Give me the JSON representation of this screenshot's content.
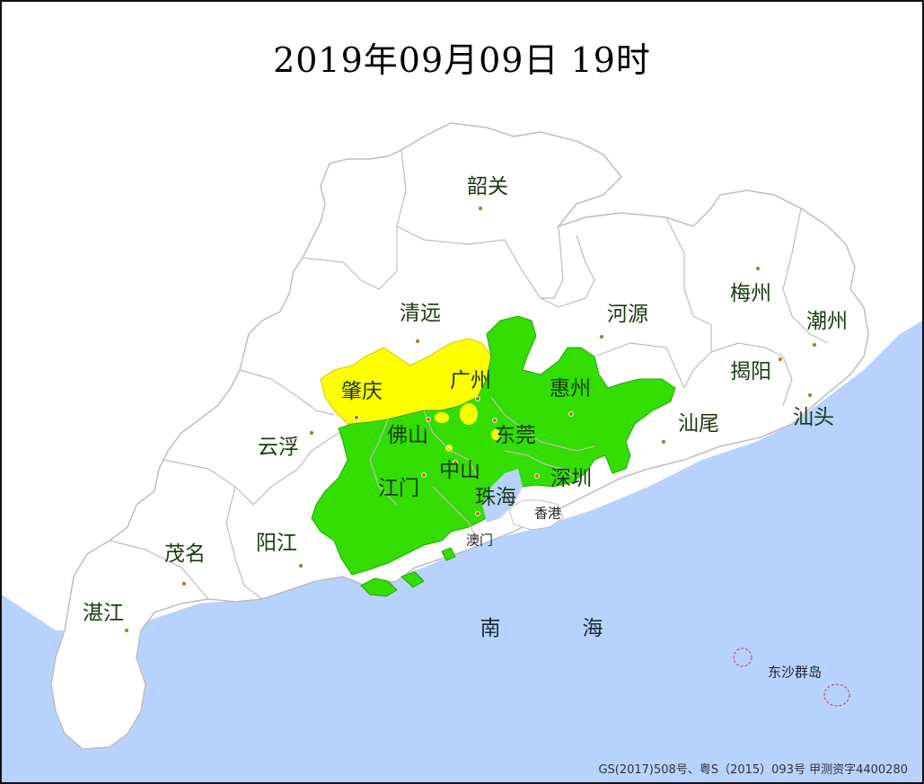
{
  "title": "2019年09月09日  19时",
  "colors": {
    "sea": "#b7d2ff",
    "land": "#ffffff",
    "border": "#bdbdbd",
    "green_zone": "#33dd00",
    "yellow_zone": "#ffff00",
    "city_marker": "#b07a28"
  },
  "cities": {
    "shaoguan": "韶关",
    "qingyuan": "清远",
    "heyuan": "河源",
    "meizhou": "梅州",
    "chaozhou": "潮州",
    "jieyang": "揭阳",
    "shantou": "汕头",
    "shanwei": "汕尾",
    "huizhou": "惠州",
    "guangzhou": "广州",
    "zhaoqing": "肇庆",
    "foshan": "佛山",
    "dongguan": "东莞",
    "yunfu": "云浮",
    "zhongshan": "中山",
    "jiangmen": "江门",
    "zhuhai": "珠海",
    "shenzhen": "深圳",
    "hongkong": "香港",
    "macau": "澳门",
    "yangjiang": "阳江",
    "maoming": "茂名",
    "zhanjiang": "湛江",
    "dongsha": "东沙群岛"
  },
  "sea_label": {
    "nan": "南",
    "hai": "海"
  },
  "footer": "GS(2017)508号、粤S（2015）093号   甲测资字4400280"
}
